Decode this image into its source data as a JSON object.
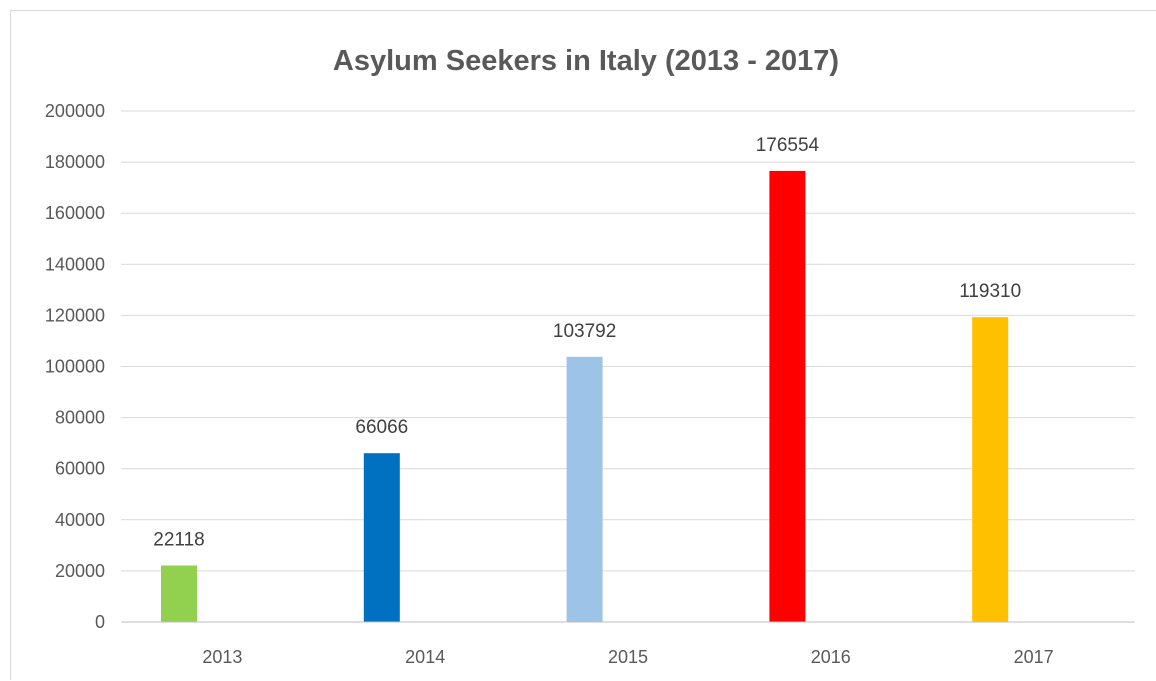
{
  "chart_data": {
    "type": "bar",
    "title": "Asylum Seekers in Italy (2013 - 2017)",
    "categories": [
      "2013",
      "2014",
      "2015",
      "2016",
      "2017"
    ],
    "values": [
      22118,
      66066,
      103792,
      176554,
      119310
    ],
    "colors": [
      "#92d050",
      "#0070c0",
      "#9dc3e6",
      "#ff0000",
      "#ffc000"
    ],
    "ylim": [
      0,
      200000
    ],
    "yticks": [
      "0",
      "20000",
      "40000",
      "60000",
      "80000",
      "100000",
      "120000",
      "140000",
      "160000",
      "180000",
      "200000"
    ],
    "grid": true,
    "legend": "none",
    "data_labels": [
      "22118",
      "66066",
      "103792",
      "176554",
      "119310"
    ]
  }
}
